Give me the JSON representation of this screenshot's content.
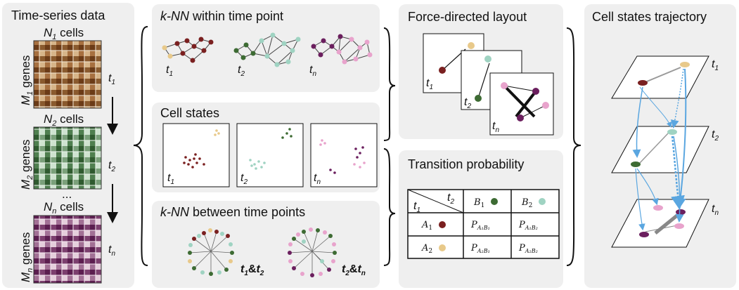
{
  "colors": {
    "panel_bg": "#efefef",
    "t1_dark": "#7a2020",
    "t1_light": "#e8c98a",
    "t2_dark": "#3d6b33",
    "t2_light": "#9fd3c2",
    "tn_dark": "#6b1f5e",
    "tn_light": "#e8a3cc",
    "arrow": "#5aa6e0"
  },
  "panel1": {
    "title": "Time-series data",
    "n1": "N",
    "n1_sub": "1",
    "n1_suffix": " cells",
    "n2": "N",
    "n2_sub": "2",
    "n2_suffix": " cells",
    "nn": "N",
    "nn_sub": "n",
    "nn_suffix": " cells",
    "m1": "M",
    "m1_sub": "1",
    "m1_suffix": " genes",
    "m2": "M",
    "m2_sub": "2",
    "m2_suffix": " genes",
    "mn": "M",
    "mn_sub": "n",
    "mn_suffix": " genes",
    "ellipsis": "...",
    "t1": "t",
    "t1_sub": "1",
    "t2": "t",
    "t2_sub": "2",
    "tn": "t",
    "tn_sub": "n"
  },
  "panel2": {
    "knn_within_italic": "k-NN",
    "knn_within_rest": " within time point",
    "t1": "t",
    "t1_sub": "1",
    "t2": "t",
    "t2_sub": "2",
    "tn": "t",
    "tn_sub": "n",
    "cell_states": "Cell states",
    "knn_between_italic": "k-NN",
    "knn_between_rest": " between time points",
    "pair1_a": "t",
    "pair1_a_sub": "1",
    "pair1_amp": "&",
    "pair1_b": "t",
    "pair1_b_sub": "2",
    "pair2_a": "t",
    "pair2_a_sub": "2",
    "pair2_amp": "&",
    "pair2_b": "t",
    "pair2_b_sub": "n"
  },
  "panel3": {
    "fdl_title": "Force-directed layout",
    "t1": "t",
    "t1_sub": "1",
    "t2": "t",
    "t2_sub": "2",
    "tn": "t",
    "tn_sub": "n",
    "tp_title": "Transition probability",
    "hdr_t1": "t",
    "hdr_t1_sub": "1",
    "hdr_t2": "t",
    "hdr_t2_sub": "2",
    "b1": "B",
    "b1_sub": "1",
    "b2": "B",
    "b2_sub": "2",
    "a1": "A",
    "a1_sub": "1",
    "a2": "A",
    "a2_sub": "2",
    "p": "P",
    "p11_sub": "A₁B₁",
    "p12_sub": "A₁B₂",
    "p21_sub": "A₂B₁",
    "p22_sub": "A₂B₂"
  },
  "panel4": {
    "title": "Cell states trajectory",
    "t1": "t",
    "t1_sub": "1",
    "t2": "t",
    "t2_sub": "2",
    "tn": "t",
    "tn_sub": "n"
  }
}
